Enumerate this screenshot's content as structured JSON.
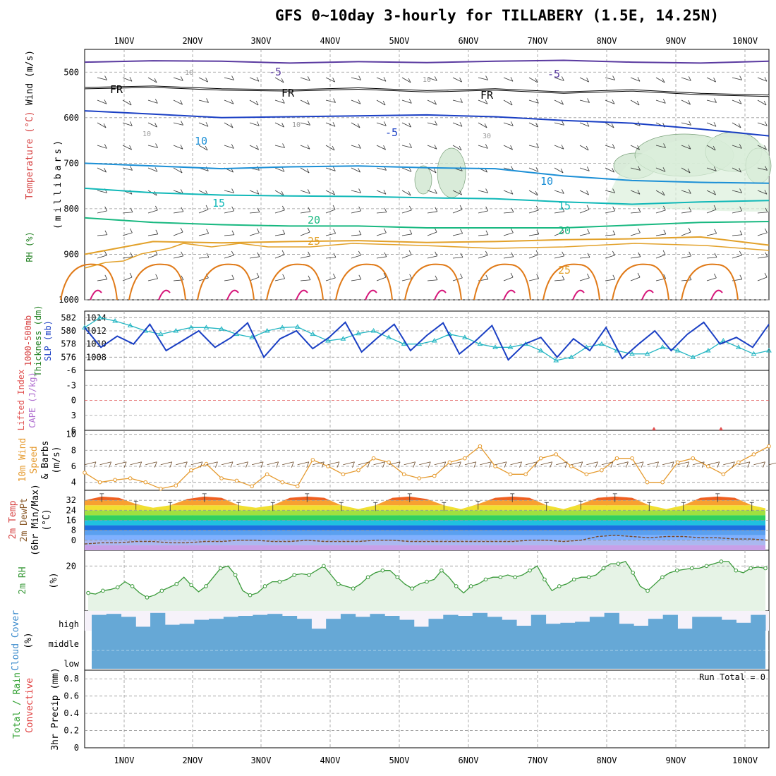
{
  "title": "GFS 0~10day 3-hourly for TILLABERY (1.5E, 14.25N)",
  "colors": {
    "grid": "#999999",
    "ink": "#000000",
    "slp": "#1a3fc4",
    "thick": "#22b5c2",
    "wind": "#e59a2e",
    "barb": "#6b4a2a",
    "rh": "#3a9a3a",
    "rhfill": "#e6f3e6",
    "cloud": "#66a8d6",
    "cloudbg": "#f6f2fa",
    "temp5": "#5a3aa0",
    "temp0": "#000000",
    "temp_m5": "#1a3fc4",
    "temp10": "#1b8fd6",
    "temp15": "#10b8b8",
    "temp20": "#18b880",
    "temp25": "#e2a12a",
    "temp30": "#e07a18",
    "temp35": "#d6177a"
  },
  "dates": [
    "1NOV",
    "2NOV",
    "3NOV",
    "4NOV",
    "5NOV",
    "6NOV",
    "7NOV",
    "8NOV",
    "9NOV",
    "10NOV"
  ],
  "chart_data": [
    {
      "type": "line",
      "panel": "upper-air",
      "ylabel": "(millibars)",
      "left_labels": [
        "RH (%)",
        "Temperature (°C)",
        "Wind (m/s)"
      ],
      "y_ticks": [
        500,
        600,
        700,
        800,
        900,
        1000
      ],
      "ylim": [
        450,
        1000
      ],
      "contour_labels": [
        "-5",
        "-5",
        "FR",
        "FR",
        "FR",
        "-5",
        "10",
        "15",
        "20",
        "25",
        "25",
        "15",
        "10",
        "20",
        "10",
        "10",
        "10",
        "10",
        "30"
      ],
      "isotherms": [
        {
          "name": "-5",
          "p": [
            478,
            475,
            476,
            480,
            477,
            479,
            476,
            474,
            478,
            480,
            476
          ]
        },
        {
          "name": "FR",
          "p": [
            535,
            532,
            538,
            540,
            536,
            542,
            538,
            545,
            540,
            548,
            552
          ]
        },
        {
          "name": "-5b",
          "p": [
            585,
            592,
            600,
            598,
            596,
            594,
            598,
            606,
            612,
            625,
            640
          ]
        },
        {
          "name": "10",
          "p": [
            700,
            706,
            712,
            708,
            706,
            710,
            712,
            728,
            738,
            742,
            744
          ]
        },
        {
          "name": "15",
          "p": [
            755,
            765,
            770,
            772,
            773,
            776,
            778,
            785,
            790,
            785,
            782
          ]
        },
        {
          "name": "20",
          "p": [
            820,
            830,
            835,
            838,
            838,
            842,
            842,
            842,
            836,
            830,
            828
          ]
        },
        {
          "name": "25",
          "p": [
            900,
            872,
            875,
            872,
            870,
            874,
            872,
            868,
            866,
            862,
            880
          ]
        }
      ]
    },
    {
      "type": "line",
      "panel": "slp-thickness",
      "ylabel": "1000-500mb Thickness (dm) / SLP (mb)",
      "left_ticks": [
        576,
        578,
        580,
        582
      ],
      "right_ticks": [
        1008,
        1010,
        1012,
        1014
      ],
      "series": [
        {
          "name": "SLP",
          "values": [
            1012.5,
            1009.5,
            1011.2,
            1010.0,
            1013.0,
            1009.0,
            1010.5,
            1012.0,
            1009.5,
            1011.0,
            1013.2,
            1008.0,
            1010.8,
            1012.0,
            1009.3,
            1011.0,
            1013.3,
            1008.8,
            1011.0,
            1013.0,
            1009.0,
            1011.3,
            1013.2,
            1008.5,
            1010.5,
            1012.8,
            1007.6,
            1010.0,
            1011.0,
            1008.0,
            1010.8,
            1009.0,
            1012.5,
            1007.8,
            1010.0,
            1012.0,
            1009.0,
            1011.5,
            1013.3,
            1010.0,
            1011.0,
            1009.5,
            1013.0
          ]
        },
        {
          "name": "Thickness",
          "values": [
            580.5,
            582.0,
            581.5,
            580.8,
            580.0,
            579.5,
            580.0,
            580.5,
            580.5,
            580.3,
            579.5,
            579.0,
            580.0,
            580.5,
            580.6,
            579.5,
            578.5,
            578.8,
            579.6,
            580.0,
            579.0,
            578.0,
            578.0,
            578.5,
            579.5,
            579.0,
            578.0,
            577.5,
            577.5,
            578.0,
            577.0,
            575.5,
            576.0,
            577.5,
            578.0,
            577.0,
            576.5,
            576.5,
            577.5,
            577.0,
            576.0,
            577.0,
            578.5,
            577.5,
            576.5,
            577.0
          ]
        }
      ]
    },
    {
      "type": "line",
      "panel": "lifted-index-cape",
      "ylabel": "CAPE (J/kg) / Lifted Index",
      "y_ticks": [
        "-6",
        "-3",
        "0",
        "3",
        "6"
      ],
      "series": [
        {
          "name": "Lifted Index",
          "values": [
            0
          ]
        }
      ]
    },
    {
      "type": "line",
      "panel": "10m-wind",
      "ylabel": "10m Wind Speed & Barbs (m/s)",
      "y_ticks": [
        4,
        6,
        8,
        10
      ],
      "ylim": [
        3,
        10.5
      ],
      "series": [
        {
          "name": "Speed",
          "values": [
            5.2,
            4.0,
            4.3,
            4.5,
            4.0,
            3.2,
            3.6,
            5.5,
            6.3,
            4.5,
            4.2,
            3.5,
            5.0,
            4.0,
            3.5,
            6.8,
            6.0,
            5.0,
            5.5,
            7.0,
            6.5,
            5.0,
            4.5,
            4.8,
            6.5,
            7.0,
            8.5,
            6.0,
            5.0,
            5.0,
            7.0,
            7.5,
            6.0,
            5.0,
            5.5,
            7.0,
            7.0,
            4.0,
            4.0,
            6.5,
            7.0,
            6.0,
            5.0,
            6.5,
            7.5,
            8.5
          ]
        }
      ]
    },
    {
      "type": "area",
      "panel": "2m-temp",
      "ylabel": "2m Temp / 2m DewPt / (6hr Min/Max) (°C)",
      "y_ticks": [
        0,
        8,
        16,
        24,
        32
      ],
      "ylim": [
        -8,
        40
      ],
      "series": [
        {
          "name": "2m Temp",
          "values": [
            32,
            35,
            34,
            29,
            26,
            28,
            33,
            35,
            34,
            28,
            26,
            28,
            34,
            35,
            34,
            28,
            25,
            28,
            34,
            35,
            33,
            28,
            25,
            29,
            34,
            35,
            34,
            28,
            25,
            29,
            34,
            35,
            34,
            28,
            25,
            28,
            34,
            35,
            34,
            28,
            25
          ]
        },
        {
          "name": "2m DewPt",
          "values": [
            -3,
            -2,
            -2,
            -1,
            -1,
            -2,
            -2,
            -1,
            -1,
            0,
            0,
            -1,
            -1,
            0,
            -1,
            -1,
            -1,
            0,
            0,
            -1,
            -1,
            -1,
            -1,
            -1,
            -1,
            -1,
            0,
            0,
            -1,
            0,
            3,
            4,
            3,
            2,
            3,
            3,
            2,
            2,
            1,
            1,
            0
          ]
        }
      ]
    },
    {
      "type": "area",
      "panel": "2m-rh",
      "ylabel": "2m RH (%)",
      "y_ticks": [
        20
      ],
      "ylim": [
        0,
        27
      ],
      "series": [
        {
          "name": "2m RH",
          "values": [
            8,
            7.5,
            9,
            9.5,
            10.5,
            13,
            11,
            8,
            6,
            7,
            9,
            10.5,
            12,
            15,
            11.5,
            8.5,
            11,
            15,
            19,
            20,
            16,
            9,
            7,
            8,
            11,
            13,
            13,
            14,
            16,
            16.5,
            16,
            18,
            20,
            16,
            12,
            11,
            10,
            12,
            15,
            17,
            18,
            18,
            15,
            12,
            10,
            12,
            13,
            14,
            18,
            15,
            11,
            8,
            11,
            12,
            14,
            15,
            15,
            16,
            15,
            16,
            18,
            20,
            14,
            9,
            11,
            12,
            14,
            15,
            15,
            16,
            19,
            21,
            21,
            22,
            17,
            11,
            9,
            12,
            15,
            17,
            18,
            18.5,
            19,
            19,
            20,
            21,
            22,
            22,
            18,
            17,
            19,
            19.5,
            19
          ]
        }
      ]
    },
    {
      "type": "bar",
      "panel": "cloud-cover",
      "ylabel": "Cloud Cover (%)",
      "levels": [
        "high",
        "middle",
        "low"
      ],
      "series": [
        {
          "name": "high",
          "values": [
            80,
            85,
            70,
            20,
            90,
            30,
            35,
            55,
            60,
            70,
            75,
            80,
            85,
            75,
            60,
            10,
            60,
            85,
            70,
            85,
            75,
            55,
            20,
            60,
            80,
            75,
            90,
            70,
            55,
            25,
            80,
            35,
            40,
            45,
            70,
            90,
            35,
            25,
            60,
            80,
            10,
            70,
            70,
            55,
            40,
            80
          ]
        }
      ]
    },
    {
      "type": "bar",
      "panel": "precip",
      "ylabel": "3hr Precip (mm)",
      "left_labels": [
        "Total / Rain",
        "Convective"
      ],
      "y_ticks": [
        "0",
        "0.2",
        "0.4",
        "0.6",
        "0.8"
      ],
      "ylim": [
        0,
        0.9
      ],
      "annotation": "Run Total = 0",
      "series": [
        {
          "name": "Total",
          "values": [
            0
          ]
        }
      ]
    }
  ]
}
